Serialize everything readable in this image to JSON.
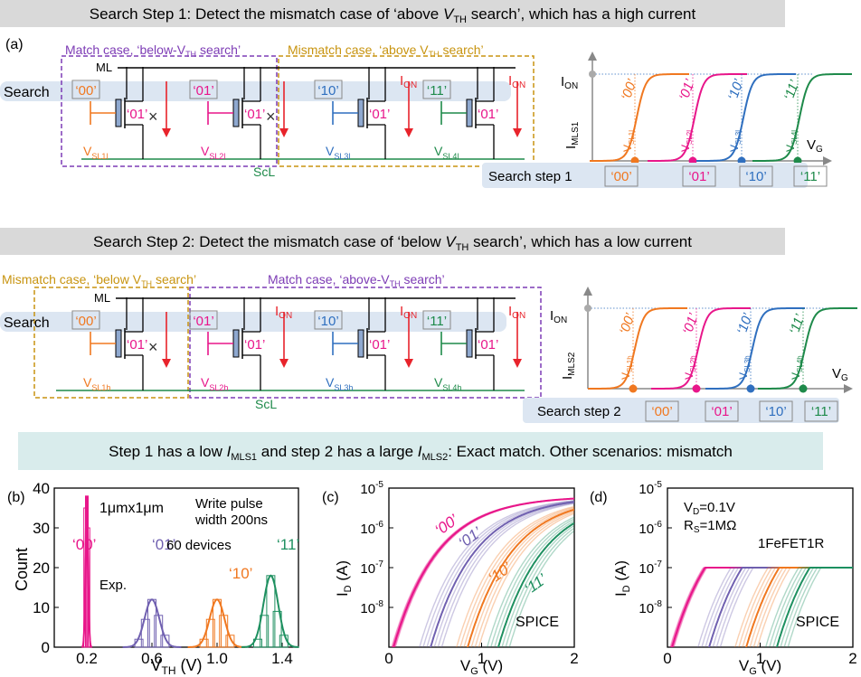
{
  "banner1": {
    "pre": "Search Step 1: Detect the mismatch case of ‘above ",
    "v": "V",
    "sub": "TH",
    "post": " search’, which has a high current"
  },
  "banner2": {
    "pre": "Search Step 2: Detect the mismatch case of ‘below ",
    "v": "V",
    "sub": "TH",
    "post": " search’, which has a low current"
  },
  "banner3": {
    "pre": "Step 1 has a low ",
    "i1": "I",
    "s1": "MLS1",
    "mid": " and step 2 has a large ",
    "i2": "I",
    "s2": "MLS2",
    "post": ": Exact match. Other scenarios: mismatch"
  },
  "panel_a": {
    "letter": "(a)",
    "match_label": "Match case, ‘below-V",
    "match_sub": "TH",
    "match_end": " search’",
    "mismatch_label": "Mismatch case, ‘above V",
    "mismatch_sub": "TH",
    "mismatch_end": " search’",
    "ml": "ML",
    "scl": "ScL",
    "search": "Search",
    "search_codes": [
      "‘00’",
      "‘01’",
      "‘10’",
      "‘11’"
    ],
    "stored": [
      "‘01’",
      "‘01’",
      "‘01’",
      "‘01’"
    ],
    "ion": "I",
    "ion_sub": "ON",
    "vsl": [
      {
        "m": "V",
        "s": "SL1l"
      },
      {
        "m": "V",
        "s": "SL2l"
      },
      {
        "m": "V",
        "s": "SL3l"
      },
      {
        "m": "V",
        "s": "SL4l"
      }
    ],
    "cross": "×",
    "graph": {
      "ion": "I",
      "ion_sub": "ON",
      "ylabel": "I",
      "ylabel_sub": "MLS1",
      "xlabel": "V",
      "xlabel_sub": "G",
      "curve_labels": [
        "‘00’",
        "‘01’",
        "‘10’",
        "‘11’"
      ],
      "v_labels": [
        {
          "m": "V",
          "s": "SL1l"
        },
        {
          "m": "V",
          "s": "SL2l"
        },
        {
          "m": "V",
          "s": "SL3l"
        },
        {
          "m": "V",
          "s": "SL4l"
        }
      ]
    },
    "step_label": "Search step 1",
    "step_codes": [
      "‘00’",
      "‘01’",
      "‘10’",
      "‘11’"
    ]
  },
  "panel_a2": {
    "mismatch_label": "Mismatch case, ‘below V",
    "mismatch_sub": "TH",
    "mismatch_end": " search’",
    "match_label": "Match case, ‘above-V",
    "match_sub": "TH",
    "match_end": " search’",
    "ml": "ML",
    "scl": "ScL",
    "search": "Search",
    "search_codes": [
      "‘00’",
      "‘01’",
      "‘10’",
      "‘11’"
    ],
    "stored": [
      "‘01’",
      "‘01’",
      "‘01’",
      "‘01’"
    ],
    "ion": "I",
    "ion_sub": "ON",
    "vsl": [
      {
        "m": "V",
        "s": "SL1h"
      },
      {
        "m": "V",
        "s": "SL2h"
      },
      {
        "m": "V",
        "s": "SL3h"
      },
      {
        "m": "V",
        "s": "SL4h"
      }
    ],
    "cross": "×",
    "graph": {
      "ion": "I",
      "ion_sub": "ON",
      "ylabel": "I",
      "ylabel_sub": "MLS2",
      "xlabel": "V",
      "xlabel_sub": "G",
      "curve_labels": [
        "‘00’",
        "‘01’",
        "‘10’",
        "‘11’"
      ],
      "v_labels": [
        {
          "m": "V",
          "s": "SL1h"
        },
        {
          "m": "V",
          "s": "SL2h"
        },
        {
          "m": "V",
          "s": "SL3h"
        },
        {
          "m": "V",
          "s": "SL4h"
        }
      ]
    },
    "step_label": "Search step 2",
    "step_codes": [
      "‘00’",
      "‘01’",
      "‘10’",
      "‘11’"
    ]
  },
  "colors": {
    "c00": "#f07820",
    "c01": "#e8168a",
    "c10": "#2f6fbf",
    "c11": "#1e8a4a",
    "purple": "#7d3cb5",
    "gold": "#c89410",
    "red": "#e8232b",
    "gray_banner": "#d9d9d9",
    "teal_banner": "#d9ecec",
    "search_band": "#dce6f2"
  },
  "chart_data": [
    {
      "panel": "(b)",
      "type": "bar",
      "xlabel": "V",
      "xlabel_sub": "TH",
      "xlabel_unit": " (V)",
      "ylabel": "Count",
      "xlim": [
        0.0,
        1.5
      ],
      "ylim": [
        0,
        40
      ],
      "xticks": [
        "0.2",
        "0.6",
        "1.0",
        "1.4"
      ],
      "yticks": [
        "0",
        "10",
        "20",
        "30",
        "40"
      ],
      "annotations": [
        "1μmx1μm",
        "Write pulse",
        "width 200ns",
        "60 devices",
        "Exp."
      ],
      "series": [
        {
          "name": "‘00’",
          "color": "#e8168a",
          "mean": 0.2,
          "bins": [
            [
              0.19,
              35
            ],
            [
              0.2,
              38
            ],
            [
              0.21,
              30
            ]
          ]
        },
        {
          "name": "‘01’",
          "color": "#7060b0",
          "mean": 0.6,
          "bins": [
            [
              0.52,
              2
            ],
            [
              0.56,
              7
            ],
            [
              0.6,
              12
            ],
            [
              0.64,
              8
            ],
            [
              0.68,
              3
            ]
          ]
        },
        {
          "name": "‘10’",
          "color": "#f07820",
          "mean": 1.0,
          "bins": [
            [
              0.92,
              2
            ],
            [
              0.96,
              7
            ],
            [
              1.0,
              12
            ],
            [
              1.04,
              8
            ],
            [
              1.08,
              3
            ]
          ]
        },
        {
          "name": "‘11’",
          "color": "#1e9060",
          "mean": 1.33,
          "bins": [
            [
              1.25,
              2
            ],
            [
              1.29,
              8
            ],
            [
              1.33,
              18
            ],
            [
              1.37,
              9
            ],
            [
              1.41,
              3
            ]
          ]
        }
      ]
    },
    {
      "panel": "(c)",
      "type": "line",
      "xlabel": "V",
      "xlabel_sub": "G",
      "xlabel_unit": " (V)",
      "ylabel": "I",
      "ylabel_sub": "D",
      "ylabel_unit": " (A)",
      "xlim": [
        0,
        2
      ],
      "ylim_log10": [
        -9,
        -5
      ],
      "xticks": [
        "0",
        "1",
        "2"
      ],
      "yticks": [
        "10",
        "10",
        "10",
        "10"
      ],
      "ytick_exp": [
        "-8",
        "-7",
        "-6",
        "-5"
      ],
      "annotations": [
        "SPICE"
      ],
      "series": [
        {
          "name": "‘00’",
          "color": "#e8168a",
          "vth": 0.2
        },
        {
          "name": "‘01’",
          "color": "#7060b0",
          "vth": 0.6
        },
        {
          "name": "‘10’",
          "color": "#f07820",
          "vth": 1.0
        },
        {
          "name": "‘11’",
          "color": "#1e9060",
          "vth": 1.33
        }
      ]
    },
    {
      "panel": "(d)",
      "type": "line",
      "xlabel": "V",
      "xlabel_sub": "G",
      "xlabel_unit": " (V)",
      "ylabel": "I",
      "ylabel_sub": "D",
      "ylabel_unit": " (A)",
      "xlim": [
        0,
        2
      ],
      "ylim_log10": [
        -9,
        -5
      ],
      "xticks": [
        "0",
        "1",
        "2"
      ],
      "yticks": [
        "10",
        "10",
        "10",
        "10"
      ],
      "ytick_exp": [
        "-8",
        "-7",
        "-6",
        "-5"
      ],
      "annotations": [
        "V",
        "D",
        "=0.1V",
        "R",
        "S",
        "=1MΩ",
        "1FeFET1R",
        "SPICE"
      ],
      "saturation": 1e-07,
      "series": [
        {
          "name": "‘00’",
          "color": "#e8168a",
          "vth": 0.2
        },
        {
          "name": "‘01’",
          "color": "#7060b0",
          "vth": 0.6
        },
        {
          "name": "‘10’",
          "color": "#f07820",
          "vth": 1.0
        },
        {
          "name": "‘11’",
          "color": "#1e9060",
          "vth": 1.33
        }
      ]
    }
  ]
}
